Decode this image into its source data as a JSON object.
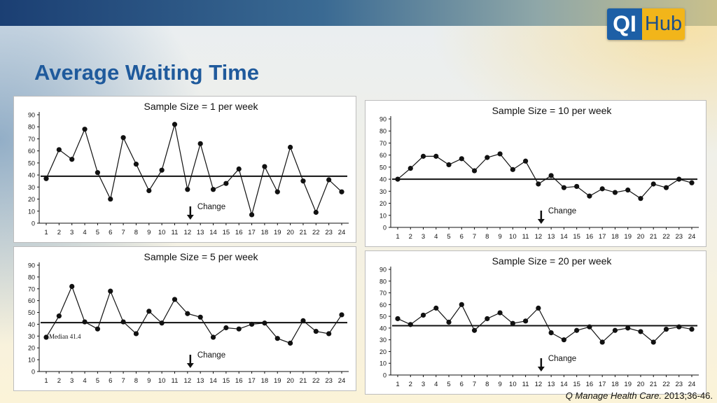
{
  "page": {
    "title": "Average Waiting Time",
    "logo": {
      "left": "QI",
      "right": "Hub"
    },
    "citation": {
      "journal": "Q Manage Health Care.",
      "ref": " 2013;36-46."
    }
  },
  "chart_data": [
    {
      "type": "line",
      "title": "Sample Size = 1 per week",
      "categories": [
        "1",
        "2",
        "3",
        "4",
        "5",
        "6",
        "7",
        "8",
        "9",
        "10",
        "11",
        "12",
        "13",
        "14",
        "15",
        "16",
        "17",
        "18",
        "19",
        "20",
        "21",
        "22",
        "23",
        "24"
      ],
      "values": [
        37,
        61,
        53,
        78,
        42,
        20,
        71,
        49,
        27,
        44,
        82,
        28,
        66,
        28,
        33,
        45,
        7,
        47,
        26,
        63,
        35,
        9,
        36,
        26
      ],
      "yticks": [
        0,
        10,
        20,
        30,
        40,
        50,
        60,
        70,
        80,
        90
      ],
      "ylim": [
        0,
        90
      ],
      "median": 39,
      "median_label": "",
      "annotation": {
        "text": "Change",
        "x_after": 12
      }
    },
    {
      "type": "line",
      "title": "Sample Size = 10 per week",
      "categories": [
        "1",
        "2",
        "3",
        "4",
        "5",
        "6",
        "7",
        "8",
        "9",
        "10",
        "11",
        "12",
        "13",
        "14",
        "15",
        "16",
        "17",
        "18",
        "19",
        "20",
        "21",
        "22",
        "23",
        "24"
      ],
      "values": [
        40,
        49,
        59,
        59,
        52,
        57,
        47,
        58,
        61,
        48,
        55,
        36,
        43,
        33,
        34,
        26,
        32,
        29,
        31,
        24,
        36,
        33,
        40,
        37
      ],
      "yticks": [
        0,
        10,
        20,
        30,
        40,
        50,
        60,
        70,
        80,
        90
      ],
      "ylim": [
        0,
        90
      ],
      "median": 40,
      "median_label": "",
      "annotation": {
        "text": "Change",
        "x_after": 12
      }
    },
    {
      "type": "line",
      "title": "Sample Size = 5 per week",
      "categories": [
        "1",
        "2",
        "3",
        "4",
        "5",
        "6",
        "7",
        "8",
        "9",
        "10",
        "11",
        "12",
        "13",
        "14",
        "15",
        "16",
        "17",
        "18",
        "19",
        "20",
        "21",
        "22",
        "23",
        "24"
      ],
      "values": [
        29,
        47,
        72,
        42,
        36,
        68,
        42,
        32,
        51,
        41,
        61,
        49,
        46,
        29,
        37,
        36,
        40,
        41,
        28,
        24,
        43,
        34,
        32,
        48
      ],
      "yticks": [
        0,
        10,
        20,
        30,
        40,
        50,
        60,
        70,
        80,
        90
      ],
      "ylim": [
        0,
        90
      ],
      "median": 41.4,
      "median_label": "Median 41.4",
      "annotation": {
        "text": "Change",
        "x_after": 12
      }
    },
    {
      "type": "line",
      "title": "Sample Size = 20 per week",
      "categories": [
        "1",
        "2",
        "3",
        "4",
        "5",
        "6",
        "7",
        "8",
        "9",
        "10",
        "11",
        "12",
        "13",
        "14",
        "15",
        "16",
        "17",
        "18",
        "19",
        "20",
        "21",
        "22",
        "23",
        "24"
      ],
      "values": [
        48,
        43,
        51,
        57,
        45,
        60,
        38,
        48,
        53,
        44,
        46,
        57,
        36,
        30,
        38,
        41,
        28,
        38,
        40,
        37,
        28,
        39,
        41,
        39
      ],
      "yticks": [
        0,
        10,
        20,
        30,
        40,
        50,
        60,
        70,
        80,
        90
      ],
      "ylim": [
        0,
        90
      ],
      "median": 42,
      "median_label": "",
      "annotation": {
        "text": "Change",
        "x_after": 12
      }
    }
  ]
}
